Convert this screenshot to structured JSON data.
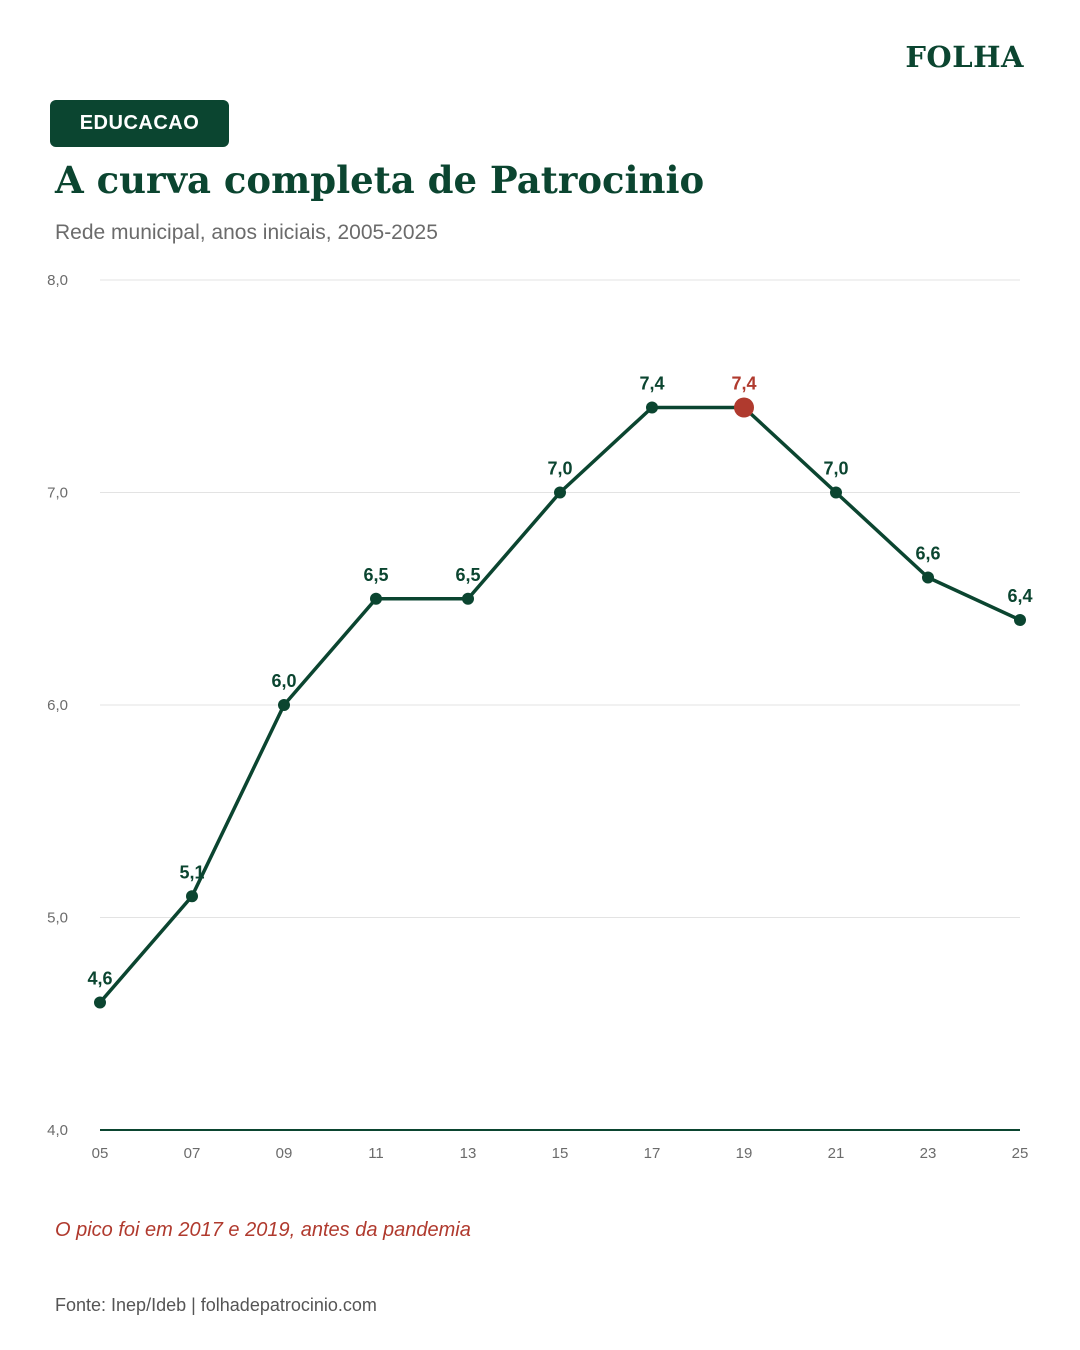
{
  "brand": "FOLHA",
  "tag": "EDUCACAO",
  "title": "A curva completa de Patrocinio",
  "subtitle": "Rede municipal, anos iniciais, 2005-2025",
  "note": "O pico foi em 2017 e 2019, antes da pandemia",
  "source": "Fonte: Inep/Ideb  |  folhadepatrocinio.com",
  "colors": {
    "primary": "#0b4530",
    "highlight": "#b03a2e",
    "grid": "#e3e3e3",
    "axis_text": "#6b6b6b"
  },
  "chart_data": {
    "type": "line",
    "title": "A curva completa de Patrocinio",
    "subtitle": "Rede municipal, anos iniciais, 2005-2025",
    "xlabel": "",
    "ylabel": "",
    "categories": [
      "05",
      "07",
      "09",
      "11",
      "13",
      "15",
      "17",
      "19",
      "21",
      "23",
      "25"
    ],
    "values": [
      4.6,
      5.1,
      6.0,
      6.5,
      6.5,
      7.0,
      7.4,
      7.4,
      7.0,
      6.6,
      6.4
    ],
    "labels": [
      "4,6",
      "5,1",
      "6,0",
      "6,5",
      "6,5",
      "7,0",
      "7,4",
      "7,4",
      "7,0",
      "6,6",
      "6,4"
    ],
    "highlight_category": "19",
    "ylim": [
      4.0,
      8.0
    ],
    "yticks": [
      4.0,
      5.0,
      6.0,
      7.0,
      8.0
    ],
    "ytick_labels": [
      "4,0",
      "5,0",
      "6,0",
      "7,0",
      "8,0"
    ],
    "grid": true,
    "legend": "none"
  }
}
